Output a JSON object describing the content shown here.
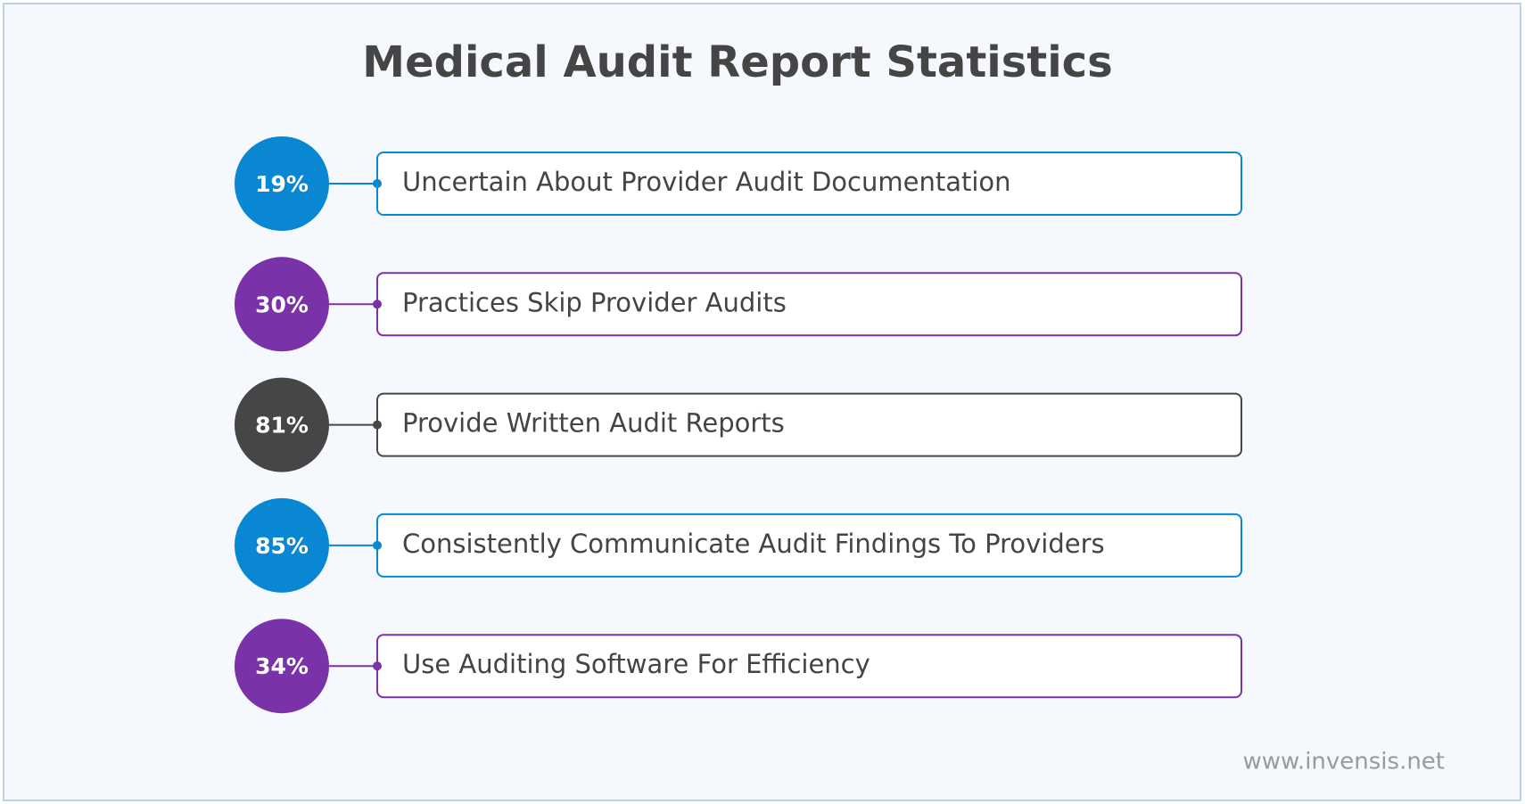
{
  "title": "Medical Audit Report Statistics",
  "items": [
    {
      "value": "19%",
      "label": "Uncertain About Provider Audit Documentation",
      "color": "#0a87d2"
    },
    {
      "value": "30%",
      "label": "Practices Skip Provider Audits",
      "color": "#7a32a8"
    },
    {
      "value": "81%",
      "label": "Provide Written Audit Reports",
      "color": "#464646"
    },
    {
      "value": "85%",
      "label": "Consistently Communicate Audit Findings To Providers",
      "color": "#0a87d2"
    },
    {
      "value": "34%",
      "label": "Use Auditing Software For Efficiency",
      "color": "#7a32a8"
    }
  ],
  "footer": "www.invensis.net"
}
